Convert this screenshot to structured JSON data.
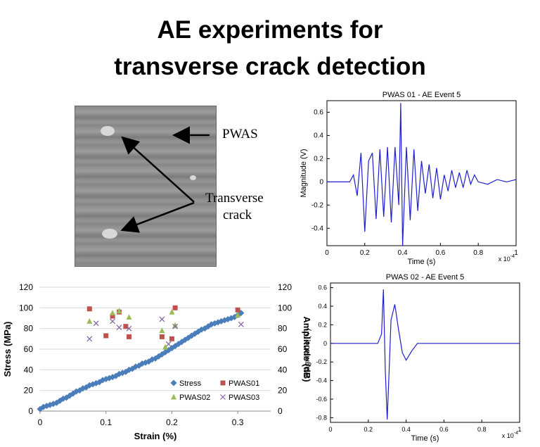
{
  "slide": {
    "title_line1": "AE experiments for",
    "title_line2": "transverse crack detection"
  },
  "photo": {
    "label_pwas": "PWAS",
    "label_crack_line1": "Transverse",
    "label_crack_line2": "crack"
  },
  "colors": {
    "waveform": "#1f1fd0",
    "stress": "#4a7ebb",
    "pwas01": "#c0504d",
    "pwas02": "#9bbb59",
    "pwas03": "#8064a2"
  },
  "chart_data": [
    {
      "type": "line",
      "title": "PWAS 01 - AE Event 5",
      "xlabel": "Time (s)",
      "ylabel": "Magnitude (V)",
      "x_multiplier": "x 10^-4",
      "xlim": [
        0,
        1
      ],
      "ylim": [
        -0.55,
        0.7
      ],
      "xticks": [
        "0",
        "0.2",
        "0.4",
        "0.6",
        "0.8",
        "1"
      ],
      "yticks": [
        "-0.4",
        "-0.2",
        "0",
        "0.2",
        "0.4",
        "0.6"
      ],
      "x": [
        0,
        0.12,
        0.14,
        0.16,
        0.18,
        0.2,
        0.22,
        0.24,
        0.26,
        0.28,
        0.3,
        0.32,
        0.34,
        0.36,
        0.38,
        0.39,
        0.4,
        0.42,
        0.44,
        0.46,
        0.48,
        0.5,
        0.52,
        0.54,
        0.56,
        0.58,
        0.6,
        0.62,
        0.64,
        0.66,
        0.68,
        0.7,
        0.72,
        0.74,
        0.76,
        0.78,
        0.8,
        0.85,
        0.9,
        0.95,
        1.0
      ],
      "y": [
        0,
        0,
        0.06,
        -0.12,
        0.25,
        -0.43,
        0.18,
        0.25,
        -0.32,
        0.28,
        -0.3,
        0.3,
        -0.35,
        0.3,
        -0.2,
        0.68,
        -0.55,
        0.3,
        -0.33,
        0.28,
        -0.25,
        0.18,
        -0.1,
        0.15,
        -0.14,
        0.12,
        -0.15,
        0.06,
        -0.08,
        0.1,
        -0.05,
        0.08,
        -0.05,
        0.1,
        -0.02,
        0.06,
        0,
        -0.02,
        0.02,
        0,
        0.02
      ]
    },
    {
      "type": "line",
      "title": "PWAS 02 - AE Event 5",
      "xlabel": "Time (s)",
      "ylabel": "Magnitude (V)",
      "x_multiplier": "x 10^-4",
      "xlim": [
        0,
        1
      ],
      "ylim": [
        -0.85,
        0.65
      ],
      "xticks": [
        "0",
        "0.2",
        "0.4",
        "0.6",
        "0.8",
        "1"
      ],
      "yticks": [
        "-0.8",
        "-0.6",
        "-0.4",
        "-0.2",
        "0",
        "0.2",
        "0.4",
        "0.6"
      ],
      "x": [
        0,
        0.1,
        0.2,
        0.25,
        0.27,
        0.28,
        0.29,
        0.3,
        0.31,
        0.32,
        0.34,
        0.36,
        0.38,
        0.4,
        0.43,
        0.46,
        0.5,
        0.6,
        0.8,
        1.0
      ],
      "y": [
        0,
        0,
        0,
        0.0,
        0.1,
        0.58,
        -0.3,
        -0.82,
        -0.3,
        0.25,
        0.42,
        0.15,
        -0.1,
        -0.18,
        -0.08,
        0.0,
        0,
        0,
        0,
        0
      ]
    },
    {
      "type": "scatter",
      "xlabel": "Strain (%)",
      "ylabel": "Stress (MPa)",
      "y2label": "Amplitude (dB)",
      "xlim": [
        0,
        0.35
      ],
      "ylim": [
        0,
        120
      ],
      "y2lim": [
        0,
        120
      ],
      "xticks": [
        "0",
        "0.1",
        "0.2",
        "0.3"
      ],
      "yticks": [
        "0",
        "20",
        "40",
        "60",
        "80",
        "100",
        "120"
      ],
      "y2ticks": [
        "0",
        "20",
        "40",
        "60",
        "80",
        "100",
        "120"
      ],
      "series": [
        {
          "name": "Stress",
          "x": [
            0,
            0.005,
            0.01,
            0.015,
            0.02,
            0.025,
            0.03,
            0.035,
            0.04,
            0.045,
            0.05,
            0.055,
            0.06,
            0.065,
            0.07,
            0.075,
            0.08,
            0.085,
            0.09,
            0.095,
            0.1,
            0.105,
            0.11,
            0.115,
            0.12,
            0.125,
            0.13,
            0.135,
            0.14,
            0.145,
            0.15,
            0.155,
            0.16,
            0.165,
            0.17,
            0.175,
            0.18,
            0.185,
            0.19,
            0.195,
            0.2,
            0.205,
            0.21,
            0.215,
            0.22,
            0.225,
            0.23,
            0.235,
            0.24,
            0.245,
            0.25,
            0.255,
            0.26,
            0.265,
            0.27,
            0.275,
            0.28,
            0.285,
            0.29,
            0.295,
            0.3,
            0.305
          ],
          "y": [
            2,
            4,
            5,
            6,
            7,
            8,
            10,
            12,
            13,
            15,
            17,
            19,
            20,
            22,
            23,
            25,
            26,
            27,
            28,
            30,
            31,
            32,
            33,
            34,
            36,
            37,
            38,
            40,
            41,
            43,
            44,
            46,
            47,
            48,
            50,
            51,
            53,
            55,
            57,
            59,
            61,
            63,
            65,
            67,
            69,
            71,
            73,
            75,
            77,
            79,
            80,
            82,
            84,
            85,
            86,
            87,
            88,
            89,
            90,
            91,
            93,
            95
          ]
        },
        {
          "name": "PWAS01",
          "x": [
            0.075,
            0.1,
            0.11,
            0.12,
            0.13,
            0.135,
            0.185,
            0.2,
            0.205,
            0.3
          ],
          "y": [
            99,
            73,
            92,
            96,
            82,
            72,
            72,
            70,
            100,
            98
          ]
        },
        {
          "name": "PWAS02",
          "x": [
            0.075,
            0.11,
            0.12,
            0.135,
            0.185,
            0.19,
            0.2,
            0.205,
            0.3
          ],
          "y": [
            87,
            95,
            97,
            91,
            78,
            62,
            96,
            83,
            93
          ]
        },
        {
          "name": "PWAS03",
          "x": [
            0.075,
            0.085,
            0.11,
            0.12,
            0.135,
            0.185,
            0.195,
            0.205,
            0.305
          ],
          "y": [
            70,
            85,
            87,
            81,
            80,
            89,
            65,
            82,
            84
          ]
        }
      ]
    }
  ]
}
